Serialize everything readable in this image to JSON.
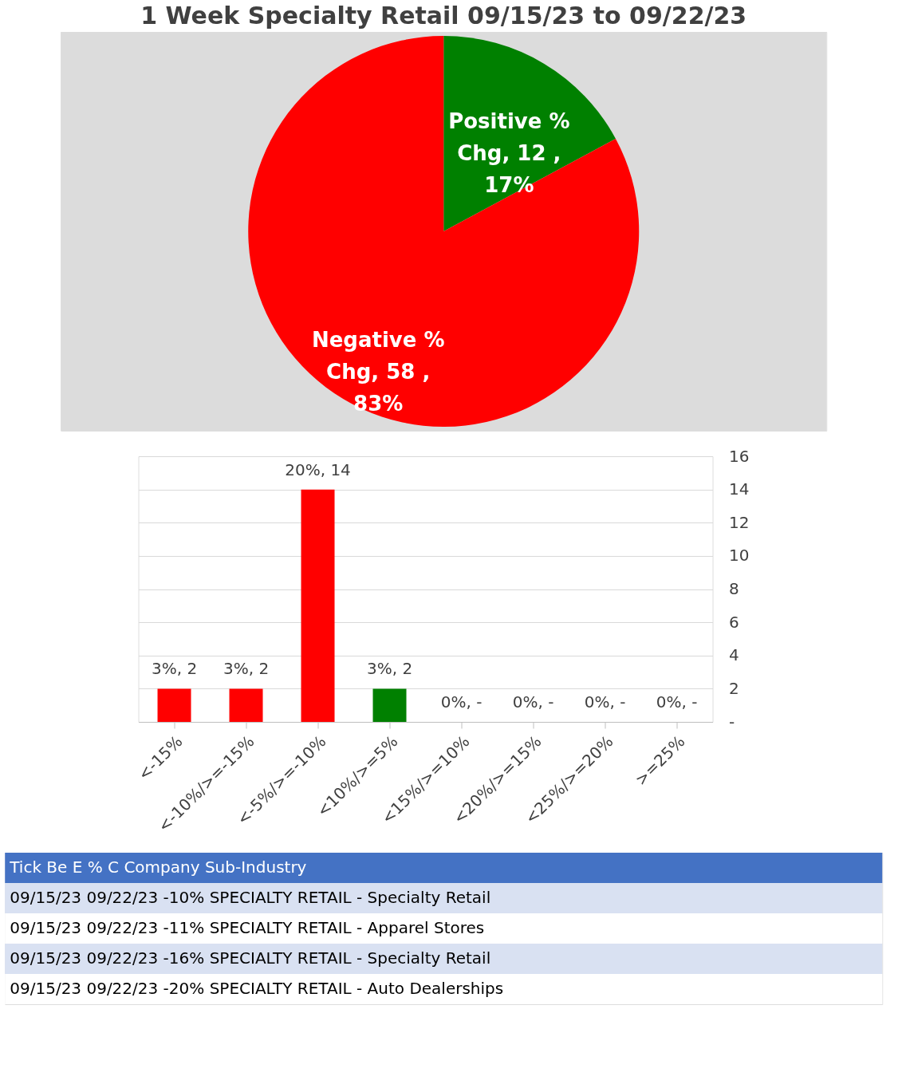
{
  "chart_data": [
    {
      "type": "pie",
      "title": "1 Week Specialty Retail 09/15/23 to 09/22/23",
      "categories": [
        "Positive % Chg",
        "Negative % Chg"
      ],
      "values": [
        12,
        58
      ],
      "colors": [
        "#008000",
        "#ff0000"
      ],
      "value_labels": [
        "12 , 17%",
        "58 , 83%"
      ],
      "legend": false
    },
    {
      "type": "bar",
      "categories": [
        "<-15%",
        "<-10%/>=-15%",
        "<-5%/>=-10%",
        "<10%/>=5%",
        "<15%/>=10%",
        "<20%/>=15%",
        "<25%/>=20%",
        ">=25%"
      ],
      "values": [
        2,
        2,
        14,
        2,
        0,
        0,
        0,
        0
      ],
      "colors": [
        "#ff0000",
        "#ff0000",
        "#ff0000",
        "#008000",
        "#008000",
        "#008000",
        "#008000",
        "#008000"
      ],
      "value_labels": [
        "3%,  2",
        "3%,  2",
        "20%,  14",
        "3%,  2",
        "0%,  -",
        "0%,  -",
        "0%,  -",
        "0%,  -"
      ],
      "ylim": [
        0,
        16
      ],
      "yticks": [
        {
          "value": 0,
          "label": "-"
        },
        2,
        4,
        6,
        8,
        10,
        12,
        14,
        16
      ],
      "grid": "y",
      "legend": false
    },
    {
      "type": "other",
      "annotations": [
        "Tick    Be    E    % C    Company    Sub-Industry",
        "09/15/23  09/22/23  -10%  SPECIALTY RETAIL - Specialty Retail",
        "09/15/23  09/22/23  -11%  SPECIALTY RETAIL - Apparel Stores",
        "09/15/23  09/22/23  -16%  SPECIALTY RETAIL - Specialty Retail",
        "09/15/23  09/22/23  -20%  SPECIALTY RETAIL - Auto Dealerships"
      ]
    }
  ]
}
